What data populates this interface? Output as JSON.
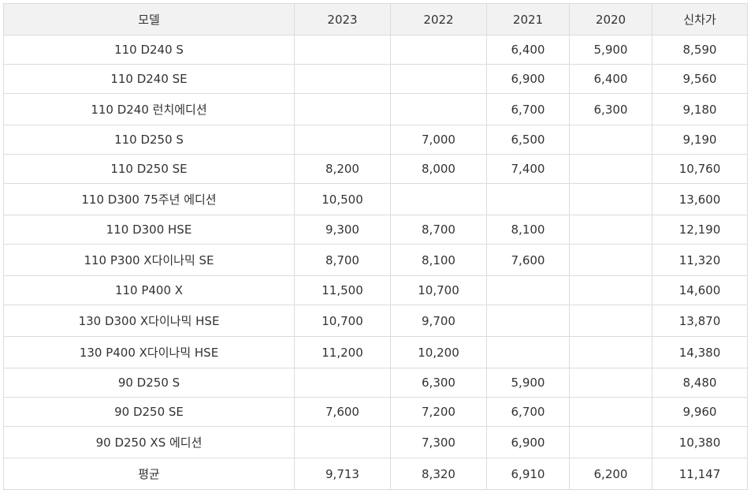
{
  "table": {
    "headers": [
      "모델",
      "2023",
      "2022",
      "2021",
      "2020",
      "신차가"
    ],
    "rows": [
      [
        "110 D240 S",
        "",
        "",
        "6,400",
        "5,900",
        "8,590"
      ],
      [
        "110 D240 SE",
        "",
        "",
        "6,900",
        "6,400",
        "9,560"
      ],
      [
        "110 D240 런치에디션",
        "",
        "",
        "6,700",
        "6,300",
        "9,180"
      ],
      [
        "110 D250 S",
        "",
        "7,000",
        "6,500",
        "",
        "9,190"
      ],
      [
        "110 D250 SE",
        "8,200",
        "8,000",
        "7,400",
        "",
        "10,760"
      ],
      [
        "110 D300 75주년 에디션",
        "10,500",
        "",
        "",
        "",
        "13,600"
      ],
      [
        "110 D300 HSE",
        "9,300",
        "8,700",
        "8,100",
        "",
        "12,190"
      ],
      [
        "110 P300 X다이나믹 SE",
        "8,700",
        "8,100",
        "7,600",
        "",
        "11,320"
      ],
      [
        "110 P400 X",
        "11,500",
        "10,700",
        "",
        "",
        "14,600"
      ],
      [
        "130 D300 X다이나믹 HSE",
        "10,700",
        "9,700",
        "",
        "",
        "13,870"
      ],
      [
        "130 P400 X다이나믹 HSE",
        "11,200",
        "10,200",
        "",
        "",
        "14,380"
      ],
      [
        "90 D250 S",
        "",
        "6,300",
        "5,900",
        "",
        "8,480"
      ],
      [
        "90 D250 SE",
        "7,600",
        "7,200",
        "6,700",
        "",
        "9,960"
      ],
      [
        "90 D250 XS 에디션",
        "",
        "7,300",
        "6,900",
        "",
        "10,380"
      ],
      [
        "평균",
        "9,713",
        "8,320",
        "6,910",
        "6,200",
        "11,147"
      ]
    ]
  }
}
